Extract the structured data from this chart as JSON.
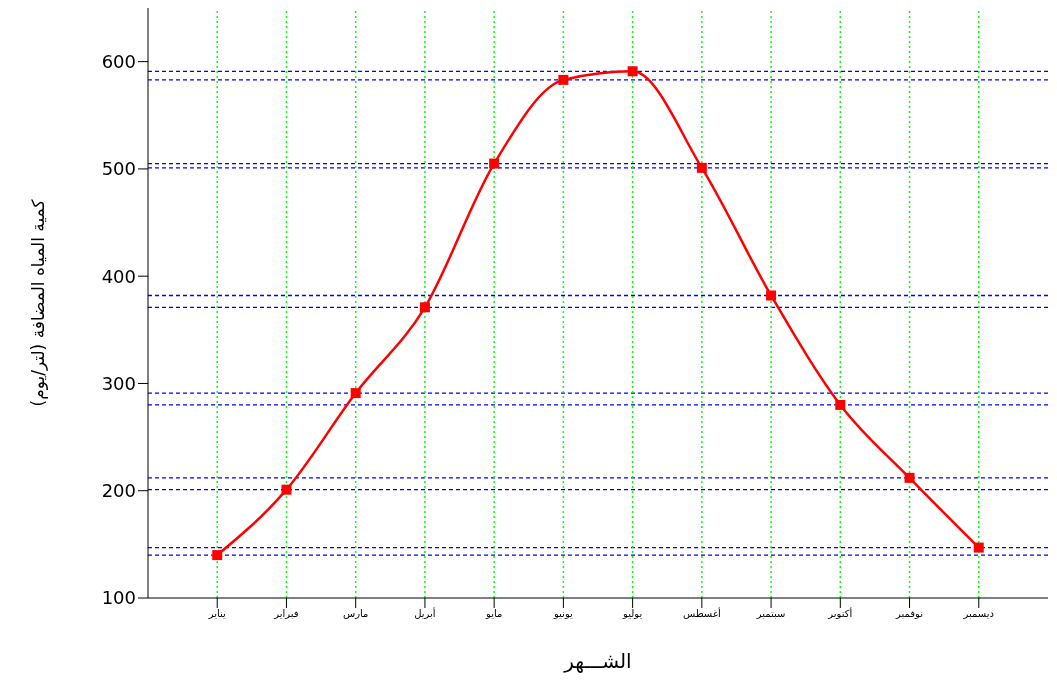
{
  "chart_data": {
    "type": "line",
    "xlabel": "الشـــهر",
    "ylabel": "كمية المياه المضافة (لتر/يوم)",
    "categories": [
      "يناير",
      "فبراير",
      "مارس",
      "أبريل",
      "مايو",
      "يونيو",
      "يوليو",
      "أغسطس",
      "سبتمبر",
      "أكتوبر",
      "نوفمبر",
      "ديسمبر"
    ],
    "series": [
      {
        "color": "#ff0000",
        "values": [
          140,
          201,
          291,
          371,
          505,
          583,
          591,
          501,
          382,
          280,
          212,
          147
        ]
      }
    ],
    "ylim": [
      100,
      650
    ],
    "yticks": [
      100,
      200,
      300,
      400,
      500,
      600
    ],
    "marker": "square",
    "line_style": "solid",
    "grid": false,
    "legend": false,
    "ref_lines": [
      {
        "axis": "y",
        "value": 140,
        "color": "#0000ff",
        "line_style": "dashed"
      },
      {
        "axis": "y",
        "value": 201,
        "color": "#0000ff",
        "line_style": "dashed"
      },
      {
        "axis": "y",
        "value": 291,
        "color": "#0000ff",
        "line_style": "dashed"
      },
      {
        "axis": "y",
        "value": 371,
        "color": "#0000ff",
        "line_style": "dashed"
      },
      {
        "axis": "y",
        "value": 505,
        "color": "#0000ff",
        "line_style": "dashed"
      },
      {
        "axis": "y",
        "value": 583,
        "color": "#0000ff",
        "line_style": "dashed"
      },
      {
        "axis": "y",
        "value": 591,
        "color": "#0000ff",
        "line_style": "dashed"
      },
      {
        "axis": "y",
        "value": 501,
        "color": "#0000ff",
        "line_style": "dashed"
      },
      {
        "axis": "y",
        "value": 382,
        "color": "#0000ff",
        "line_style": "dashed"
      },
      {
        "axis": "y",
        "value": 280,
        "color": "#0000ff",
        "line_style": "dashed"
      },
      {
        "axis": "y",
        "value": 212,
        "color": "#0000ff",
        "line_style": "dashed"
      },
      {
        "axis": "y",
        "value": 147,
        "color": "#0000ff",
        "line_style": "dashed"
      },
      {
        "axis": "x",
        "value": "يناير",
        "color": "#00ff00",
        "line_style": "dotted"
      },
      {
        "axis": "x",
        "value": "فبراير",
        "color": "#00ff00",
        "line_style": "dotted"
      },
      {
        "axis": "x",
        "value": "مارس",
        "color": "#00ff00",
        "line_style": "dotted"
      },
      {
        "axis": "x",
        "value": "أبريل",
        "color": "#00ff00",
        "line_style": "dotted"
      },
      {
        "axis": "x",
        "value": "مايو",
        "color": "#00ff00",
        "line_style": "dotted"
      },
      {
        "axis": "x",
        "value": "يونيو",
        "color": "#00ff00",
        "line_style": "dotted"
      },
      {
        "axis": "x",
        "value": "يوليو",
        "color": "#00ff00",
        "line_style": "dotted"
      },
      {
        "axis": "x",
        "value": "أغسطس",
        "color": "#00ff00",
        "line_style": "dotted"
      },
      {
        "axis": "x",
        "value": "سبتمبر",
        "color": "#00ff00",
        "line_style": "dotted"
      },
      {
        "axis": "x",
        "value": "أكتوبر",
        "color": "#00ff00",
        "line_style": "dotted"
      },
      {
        "axis": "x",
        "value": "نوفمبر",
        "color": "#00ff00",
        "line_style": "dotted"
      },
      {
        "axis": "x",
        "value": "ديسمبر",
        "color": "#00ff00",
        "line_style": "dotted"
      }
    ]
  }
}
